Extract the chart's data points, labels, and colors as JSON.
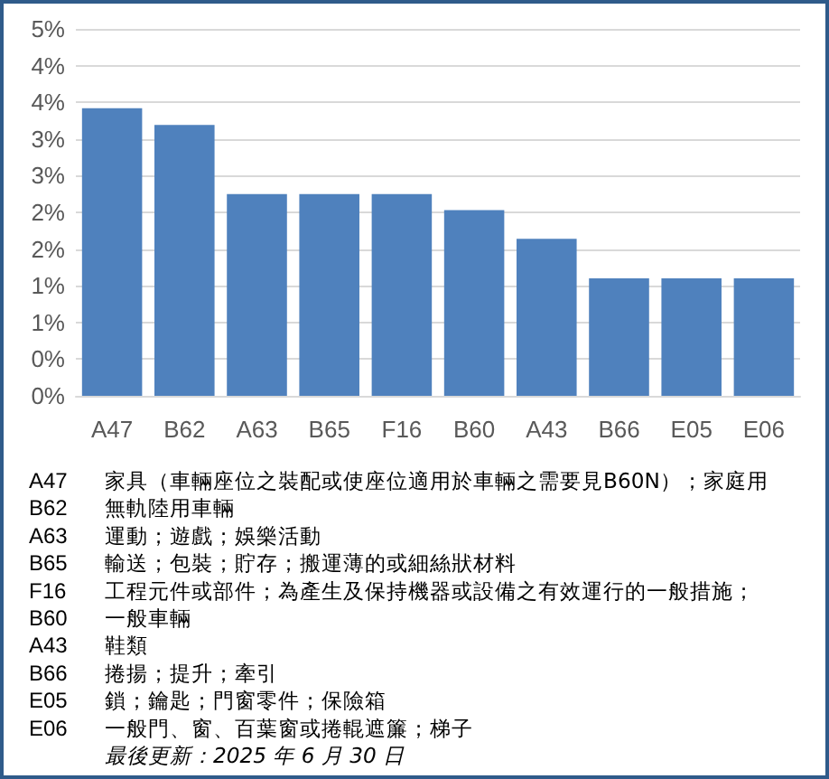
{
  "chart_data": {
    "type": "bar",
    "categories": [
      "A47",
      "B62",
      "A63",
      "B65",
      "F16",
      "B60",
      "A43",
      "B66",
      "E05",
      "E06"
    ],
    "values": [
      3.92,
      3.69,
      2.75,
      2.75,
      2.75,
      2.53,
      2.14,
      1.6,
      1.6,
      1.6
    ],
    "color": "#4f81bd",
    "ylim": [
      0,
      5
    ],
    "yticks": [
      {
        "value": 0,
        "label": "0%"
      },
      {
        "value": 0.5,
        "label": "0%"
      },
      {
        "value": 1,
        "label": "1%"
      },
      {
        "value": 1.5,
        "label": "1%"
      },
      {
        "value": 2,
        "label": "2%"
      },
      {
        "value": 2.5,
        "label": "2%"
      },
      {
        "value": 3,
        "label": "3%"
      },
      {
        "value": 3.5,
        "label": "3%"
      },
      {
        "value": 4,
        "label": "4%"
      },
      {
        "value": 4.5,
        "label": "4%"
      },
      {
        "value": 5,
        "label": "5%"
      }
    ],
    "grid": "y",
    "annotations": [
      "A47 家具（車輛座位之裝配或使座位適用於車輛之需要見B60N）；家庭用",
      "B62 無軌陸用車輛",
      "A63 運動；遊戲；娛樂活動",
      "B65 輸送；包裝；貯存；搬運薄的或細絲狀材料",
      "F16 工程元件或部件；為產生及保持機器或設備之有效運行的一般措施；",
      "B60 一般車輛",
      "A43 鞋類",
      "B66 捲揚；提升；牽引",
      "E05 鎖；鑰匙；門窗零件；保險箱",
      "E06 一般門、窗、百葉窗或捲輥遮簾；梯子",
      "最後更新：2025 年 6 月 30 日"
    ]
  }
}
